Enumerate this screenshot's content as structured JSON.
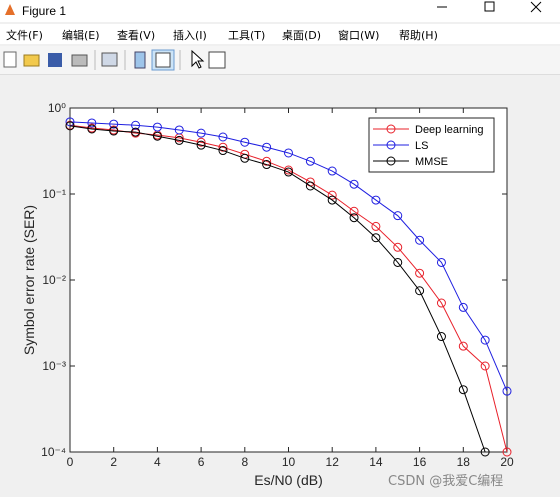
{
  "window": {
    "title": "Figure 1",
    "menu": [
      "文件(F)",
      "编辑(E)",
      "查看(V)",
      "插入(I)",
      "工具(T)",
      "桌面(D)",
      "窗口(W)",
      "帮助(H)"
    ],
    "watermark": "CSDN @我爱C编程"
  },
  "chart_data": {
    "type": "line",
    "xlabel": "Es/N0 (dB)",
    "ylabel": "Symbol error rate (SER)",
    "x": [
      0,
      1,
      2,
      3,
      4,
      5,
      6,
      7,
      8,
      9,
      10,
      11,
      12,
      13,
      14,
      15,
      16,
      17,
      18,
      19,
      20
    ],
    "xlim": [
      0,
      20
    ],
    "xticks": [
      0,
      2,
      4,
      6,
      8,
      10,
      12,
      14,
      16,
      18,
      20
    ],
    "ylim": [
      0.0001,
      1
    ],
    "log_y": true,
    "yticks": [
      {
        "value": 0.0001,
        "label": "10⁻⁴"
      },
      {
        "value": 0.001,
        "label": "10⁻³"
      },
      {
        "value": 0.01,
        "label": "10⁻²"
      },
      {
        "value": 0.1,
        "label": "10⁻¹"
      },
      {
        "value": 1,
        "label": "10⁰"
      }
    ],
    "legend": "northeast",
    "marker": "circle",
    "series": [
      {
        "name": "Deep learning",
        "color": "#e8202a",
        "values": [
          0.63,
          0.585,
          0.555,
          0.51,
          0.485,
          0.45,
          0.4,
          0.35,
          0.29,
          0.24,
          0.19,
          0.138,
          0.097,
          0.063,
          0.042,
          0.024,
          0.012,
          0.0054,
          0.0017,
          0.001,
          0.0001
        ]
      },
      {
        "name": "LS",
        "color": "#1f1fe0",
        "values": [
          0.69,
          0.67,
          0.65,
          0.63,
          0.6,
          0.555,
          0.51,
          0.46,
          0.4,
          0.35,
          0.3,
          0.24,
          0.185,
          0.13,
          0.085,
          0.056,
          0.029,
          0.016,
          0.0048,
          0.002,
          0.00051
        ]
      },
      {
        "name": "MMSE",
        "color": "#000000",
        "values": [
          0.62,
          0.57,
          0.54,
          0.525,
          0.47,
          0.42,
          0.37,
          0.32,
          0.26,
          0.22,
          0.18,
          0.124,
          0.085,
          0.053,
          0.031,
          0.016,
          0.0075,
          0.0022,
          0.00053,
          0.0001,
          null
        ]
      }
    ]
  }
}
